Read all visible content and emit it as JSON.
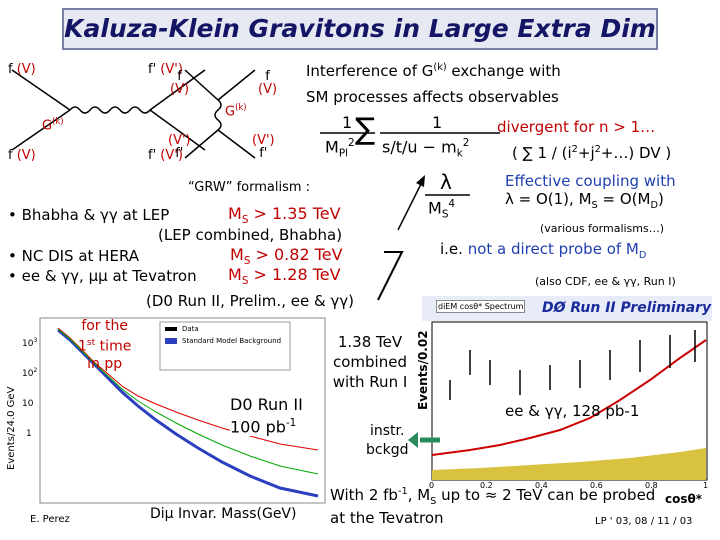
{
  "title": "Kaluza-Klein Gravitons in Large Extra Dim",
  "diagrams": {
    "d1": {
      "tl": "f",
      "tlv": "(V)",
      "tr": "f'",
      "trv": "(V')",
      "mid": "G",
      "midsup": "(k)",
      "bl": "f",
      "blv": "(V)",
      "br": "f'",
      "brv": "(V')"
    },
    "d2": {
      "tl": "f",
      "tlv": "(V)",
      "tr": "f",
      "trv": "(V)",
      "mid": "G",
      "midsup": "(k)",
      "bl": "f'",
      "blv": "(V')",
      "br": "f'",
      "brv": "(V')"
    }
  },
  "interference": {
    "a": "Interference of G",
    "sup": "(k)",
    "b": " exchange with",
    "line2": "SM processes affects observables"
  },
  "formula": {
    "num1": "1",
    "den1": "M",
    "den1sub": "Pl",
    "den1sup": "2",
    "sum": "∑",
    "num2": "1",
    "den2": "s/t/u − m",
    "den2sub": "k",
    "den2sup": "2"
  },
  "divergent": {
    "line1": "divergent for n > 1…",
    "a": "( ∑ 1 / (i",
    "s1": "2",
    "b": "+j",
    "s2": "2",
    "c": "+…) DV )"
  },
  "coupling": {
    "num": "λ",
    "den": "M",
    "densub": "S",
    "densup": "4"
  },
  "effective": {
    "line1": "Effective coupling with",
    "a": "λ = O(1), M",
    "s1": "S",
    "b": " = O(M",
    "s2": "D",
    "c": ")"
  },
  "various": "(various formalisms…)",
  "probe": {
    "a": "i.e. ",
    "b": "not a direct probe of M",
    "sub": "D"
  },
  "also": "(also CDF, ee & γγ, Run I)",
  "grw": "“GRW” formalism :",
  "bullets": {
    "b1": "• Bhabha & γγ at LEP",
    "b1m": "M",
    "b1s": "S",
    "b1v": " > 1.35 TeV",
    "b1n": "(LEP combined, Bhabha)",
    "b2": "• NC DIS at HERA",
    "b2m": "M",
    "b2s": "S",
    "b2v": " > 0.82 TeV",
    "b3": "• ee & γγ, μμ at Tevatron",
    "b3m": "M",
    "b3s": "S",
    "b3v": " > 1.28 TeV",
    "b3n": "(D0 Run II, Prelim., ee & γγ)"
  },
  "left_plot": {
    "first": {
      "a": "for the",
      "b": "1",
      "sup": "st",
      "c": " time",
      "d": "in pp"
    },
    "run": {
      "a": "D0 Run II",
      "b": "100 pb",
      "sup": "-1"
    },
    "ylabel": "Events/24.0 GeV",
    "xlabel": "Diμ Invar. Mass(GeV)",
    "legend": [
      "Data",
      "Standard Model Background"
    ],
    "yticks": [
      {
        "base": "10",
        "exp": "3"
      },
      {
        "base": "10",
        "exp": "2"
      },
      {
        "base": "10",
        "exp": ""
      },
      {
        "base": "1",
        "exp": ""
      }
    ],
    "author": "E. Perez"
  },
  "combined": [
    "1.38 TeV",
    "combined",
    "with Run I"
  ],
  "right_plot": {
    "header": "DØ Run II Preliminary",
    "subheader": "diEM cosθ* Spectrum",
    "ylabel": "Events/0.02",
    "label": "ee & γγ, 128 pb-1",
    "xlabel": "cosθ*",
    "xticks": [
      "0",
      "0.2",
      "0.4",
      "0.6",
      "0.8",
      "1"
    ]
  },
  "instr": [
    "instr.",
    "bckgd"
  ],
  "bottom": {
    "a": "With 2 fb",
    "sup": "-1",
    "b": ", M",
    "sub": "S",
    "c": " up to ≈ 2 TeV can be probed",
    "line2": "at the Tevatron",
    "ref": "LP ' 03, 08 / 11 / 03"
  }
}
